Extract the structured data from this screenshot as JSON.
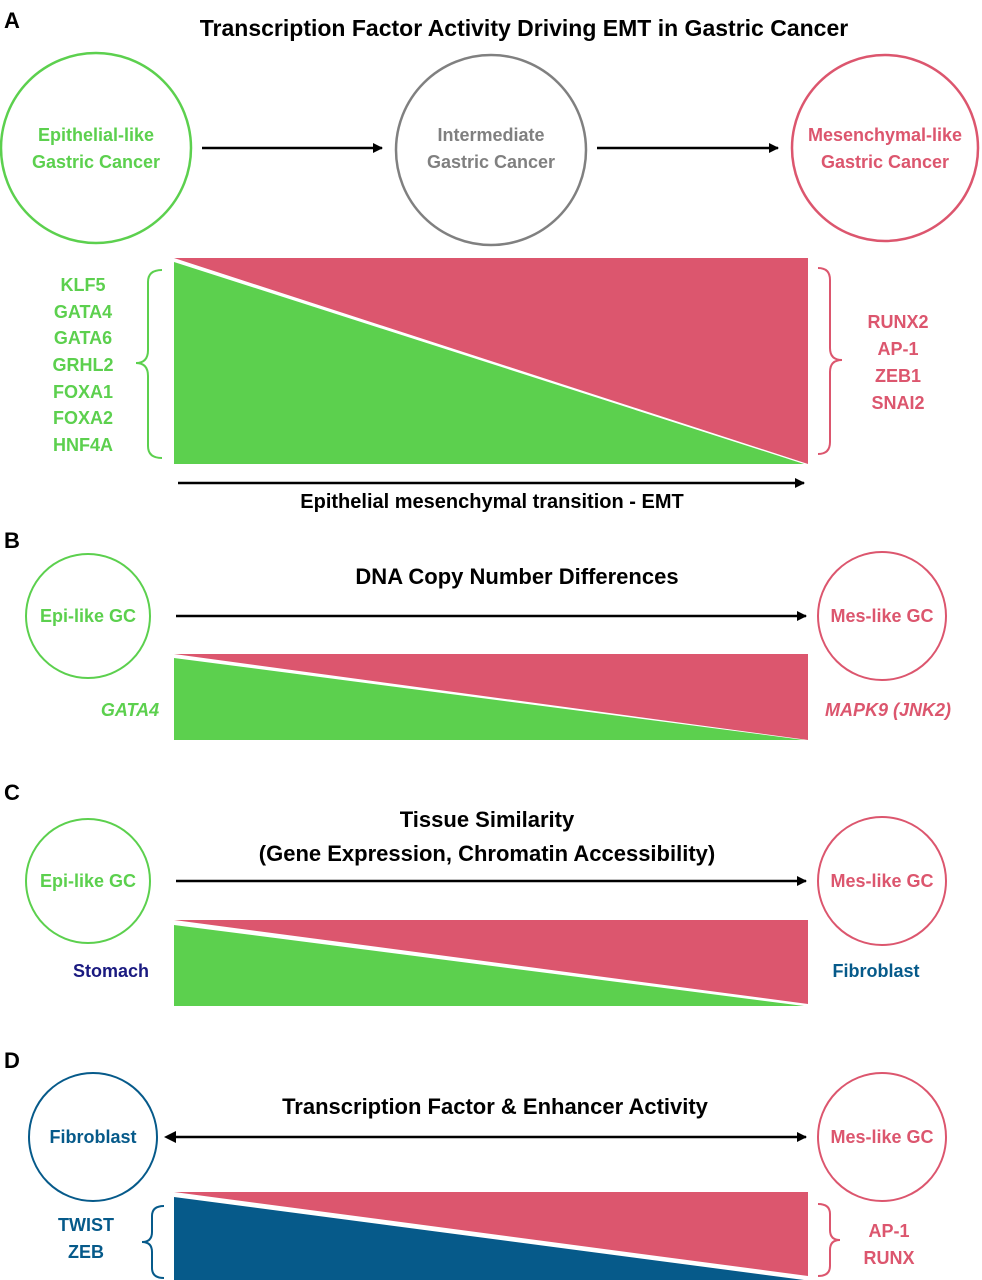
{
  "colors": {
    "epithelial": "#5cd04e",
    "mesenchymal": "#dc566e",
    "intermediate": "#808080",
    "fibroblast": "#065a8a",
    "stomach": "#1a1a80",
    "black": "#000000"
  },
  "panelA": {
    "letter": "A",
    "title": "Transcription Factor Activity Driving EMT in Gastric Cancer",
    "left_circle": [
      "Epithelial-like",
      "Gastric Cancer"
    ],
    "middle_circle": [
      "Intermediate",
      "Gastric Cancer"
    ],
    "right_circle": [
      "Mesenchymal-like",
      "Gastric Cancer"
    ],
    "left_factors": [
      "KLF5",
      "GATA4",
      "GATA6",
      "GRHL2",
      "FOXA1",
      "FOXA2",
      "HNF4A"
    ],
    "right_factors": [
      "RUNX2",
      "AP-1",
      "ZEB1",
      "SNAI2"
    ],
    "axis_label": "Epithelial mesenchymal transition - EMT"
  },
  "panelB": {
    "letter": "B",
    "title": "DNA Copy Number Differences",
    "left_circle": "Epi-like GC",
    "right_circle": "Mes-like GC",
    "left_gene": "GATA4",
    "right_gene": "MAPK9 (JNK2)"
  },
  "panelC": {
    "letter": "C",
    "title_line1": "Tissue Similarity",
    "title_line2": "(Gene Expression, Chromatin Accessibility)",
    "left_circle": "Epi-like GC",
    "right_circle": "Mes-like GC",
    "left_tissue": "Stomach",
    "right_tissue": "Fibroblast"
  },
  "panelD": {
    "letter": "D",
    "title": "Transcription Factor & Enhancer Activity",
    "left_circle": "Fibroblast",
    "right_circle": "Mes-like GC",
    "left_factors": [
      "TWIST",
      "ZEB"
    ],
    "right_factors": [
      "AP-1",
      "RUNX"
    ]
  }
}
